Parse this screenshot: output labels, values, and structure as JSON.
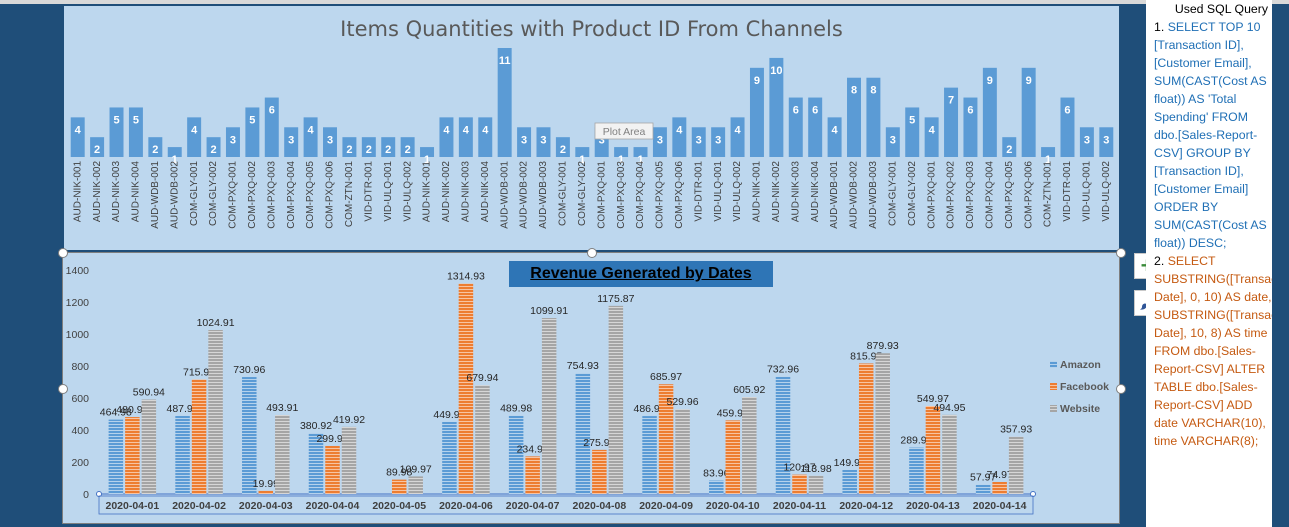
{
  "panel": {
    "header": "Used SQL Query",
    "query1_number": "1.",
    "query1": "SELECT TOP 10 [Transaction ID], [Customer Email], SUM(CAST(Cost AS float)) AS 'Total Spending' FROM dbo.[Sales-Report-CSV] GROUP BY [Transaction ID], [Customer Email] ORDER BY SUM(CAST(Cost AS float)) DESC;",
    "query2_number": "2.",
    "query2": "SELECT SUBSTRING([Transaction Date], 0, 10) AS date, SUBSTRING([Transaction Date], 10, 8) AS time FROM dbo.[Sales-Report-CSV] ALTER TABLE dbo.[Sales-Report-CSV] ADD date VARCHAR(10), time VARCHAR(8);"
  },
  "chart1_meta": {
    "plot_area_tooltip": "Plot Area"
  },
  "chart_data": [
    {
      "type": "bar",
      "title": "Items Quantities with Product ID From Channels",
      "categories": [
        "AUD-NIK-001",
        "AUD-NIK-002",
        "AUD-NIK-003",
        "AUD-NIK-004",
        "AUD-WDB-001",
        "AUD-WDB-002",
        "COM-GLY-001",
        "COM-GLY-002",
        "COM-PXQ-001",
        "COM-PXQ-002",
        "COM-PXQ-003",
        "COM-PXQ-004",
        "COM-PXQ-005",
        "COM-PXQ-006",
        "COM-ZTN-001",
        "VID-DTR-001",
        "VID-ULQ-001",
        "VID-ULQ-002",
        "AUD-NIK-001",
        "AUD-NIK-002",
        "AUD-NIK-003",
        "AUD-NIK-004",
        "AUD-WDB-001",
        "AUD-WDB-002",
        "AUD-WDB-003",
        "COM-GLY-001",
        "COM-GLY-002",
        "COM-PXQ-001",
        "COM-PXQ-003",
        "COM-PXQ-004",
        "COM-PXQ-005",
        "COM-PXQ-006",
        "VID-DTR-001",
        "VID-ULQ-001",
        "VID-ULQ-002",
        "AUD-NIK-001",
        "AUD-NIK-002",
        "AUD-NIK-003",
        "AUD-NIK-004",
        "AUD-WDB-001",
        "AUD-WDB-002",
        "AUD-WDB-003",
        "COM-GLY-001",
        "COM-GLY-002",
        "COM-PXQ-001",
        "COM-PXQ-002",
        "COM-PXQ-003",
        "COM-PXQ-004",
        "COM-PXQ-005",
        "COM-PXQ-006",
        "COM-ZTN-001",
        "VID-DTR-001",
        "VID-ULQ-001",
        "VID-ULQ-002"
      ],
      "values": [
        4,
        2,
        5,
        5,
        2,
        1,
        4,
        2,
        3,
        5,
        6,
        3,
        4,
        3,
        2,
        2,
        2,
        2,
        1,
        4,
        4,
        4,
        11,
        3,
        3,
        2,
        1,
        3,
        1,
        1,
        3,
        4,
        3,
        3,
        4,
        9,
        10,
        6,
        6,
        4,
        8,
        8,
        3,
        5,
        4,
        7,
        6,
        9,
        2,
        9,
        1,
        6,
        3,
        3
      ],
      "ylim": [
        0,
        11
      ],
      "color": "#5b9bd5",
      "grid": false,
      "legend": false
    },
    {
      "type": "bar",
      "title": "Revenue Generated by Dates",
      "categories": [
        "2020-04-01",
        "2020-04-02",
        "2020-04-03",
        "2020-04-04",
        "2020-04-05",
        "2020-04-06",
        "2020-04-07",
        "2020-04-08",
        "2020-04-09",
        "2020-04-10",
        "2020-04-11",
        "2020-04-12",
        "2020-04-13",
        "2020-04-14"
      ],
      "series": [
        {
          "name": "Amazon",
          "color": "#5b9bd5",
          "values": [
            464.98,
            487.96,
            730.96,
            380.92,
            0,
            449.99,
            489.98,
            754.93,
            486.97,
            83.96,
            732.96,
            149.97,
            289.97,
            57.97
          ]
        },
        {
          "name": "Facebook",
          "color": "#ed7d31",
          "values": [
            480.98,
            715.97,
            19.99,
            299.97,
            89.98,
            1314.93,
            234.98,
            275.96,
            685.97,
            459.98,
            120.97,
            815.95,
            549.97,
            74.97
          ]
        },
        {
          "name": "Website",
          "color": "#a5a5a5",
          "values": [
            590.94,
            1024.91,
            493.91,
            419.92,
            109.97,
            679.94,
            1099.91,
            1175.87,
            529.96,
            605.92,
            113.98,
            879.93,
            494.95,
            357.93
          ]
        }
      ],
      "ylim": [
        0,
        1400
      ],
      "yticks": [
        0,
        200,
        400,
        600,
        800,
        1000,
        1200,
        1400
      ],
      "grid": false,
      "legend": "right"
    }
  ]
}
